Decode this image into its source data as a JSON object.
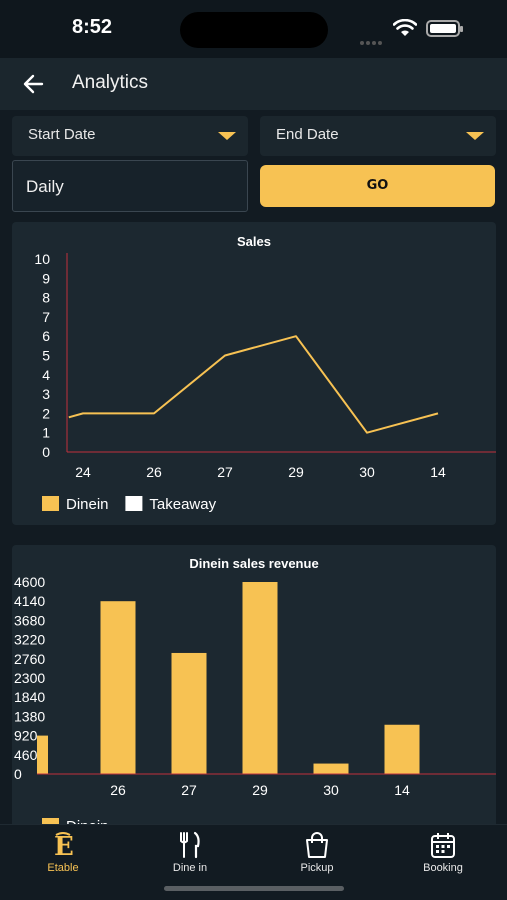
{
  "status_bar": {
    "time": "8:52"
  },
  "app_bar": {
    "title": "Analytics"
  },
  "filters": {
    "start_date_label": "Start Date",
    "end_date_label": "End Date",
    "period_value": "Daily",
    "go_label": "GO"
  },
  "colors": {
    "accent": "#f7c253",
    "background": "#121b22",
    "card": "#1c2830",
    "axis": "#c0303c"
  },
  "chart_data": [
    {
      "type": "line",
      "title": "Sales",
      "categories": [
        "24",
        "26",
        "27",
        "29",
        "30",
        "14"
      ],
      "y_ticks": [
        "10",
        "9",
        "8",
        "7",
        "6",
        "5",
        "4",
        "3",
        "2",
        "1",
        "0"
      ],
      "ylim": [
        0,
        10
      ],
      "points": [
        [
          -0.2,
          1.8
        ],
        [
          0,
          2
        ],
        [
          1,
          2
        ],
        [
          2,
          5
        ],
        [
          3,
          6
        ],
        [
          4,
          1
        ],
        [
          5,
          2
        ]
      ],
      "series": [
        {
          "name": "Dinein",
          "color": "#f7c253"
        },
        {
          "name": "Takeaway",
          "color": "#ffffff"
        }
      ],
      "legend": "bottom-left"
    },
    {
      "type": "bar",
      "title": "Dinein sales revenue",
      "categories": [
        "",
        "26",
        "27",
        "29",
        "30",
        "14"
      ],
      "values": [
        920,
        4140,
        2900,
        4600,
        250,
        1180
      ],
      "y_ticks": [
        "4600",
        "4140",
        "3680",
        "3220",
        "2760",
        "2300",
        "1840",
        "1380",
        "920",
        "460",
        "0"
      ],
      "ylim": [
        0,
        4600
      ],
      "series": [
        {
          "name": "Dinein",
          "color": "#f7c253"
        }
      ],
      "legend": "bottom-left"
    }
  ],
  "bottom_nav": [
    {
      "label": "Etable",
      "icon": "etable-logo-icon",
      "active": true
    },
    {
      "label": "Dine in",
      "icon": "fork-knife-icon",
      "active": false
    },
    {
      "label": "Pickup",
      "icon": "shopping-bag-icon",
      "active": false
    },
    {
      "label": "Booking",
      "icon": "calendar-icon",
      "active": false
    }
  ]
}
